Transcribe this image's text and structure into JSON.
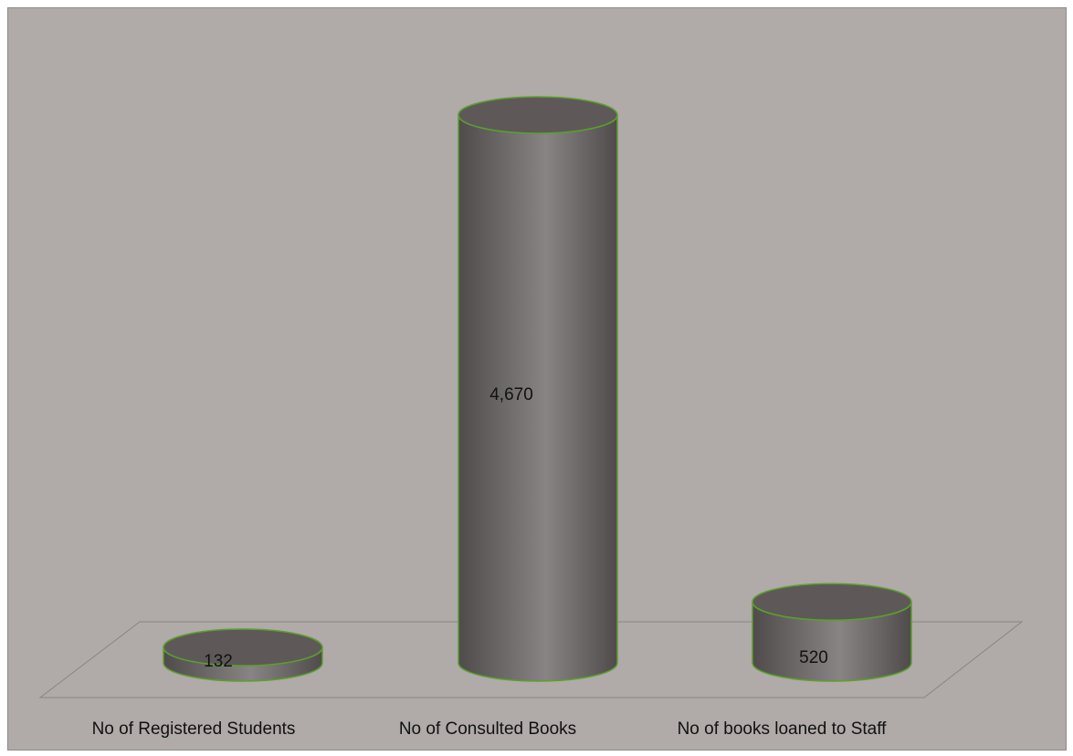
{
  "colors": {
    "background": "#b0aaa9",
    "floor_stroke": "#8a8483",
    "cylinder_dark": "#4f4b4b",
    "cylinder_light": "#888483",
    "cylinder_top": "#5e5958",
    "outline": "#5aa02c"
  },
  "chart_data": {
    "type": "bar",
    "bar_shape": "cylinder",
    "categories": [
      "No of Registered Students",
      "No of Consulted Books",
      "No of books loaned to Staff"
    ],
    "values": [
      132,
      4670,
      520
    ],
    "value_labels": [
      "132",
      "4,670",
      "520"
    ],
    "title": "",
    "xlabel": "",
    "ylabel": "",
    "ylim": [
      0,
      5000
    ],
    "grid": false,
    "legend": "none"
  }
}
